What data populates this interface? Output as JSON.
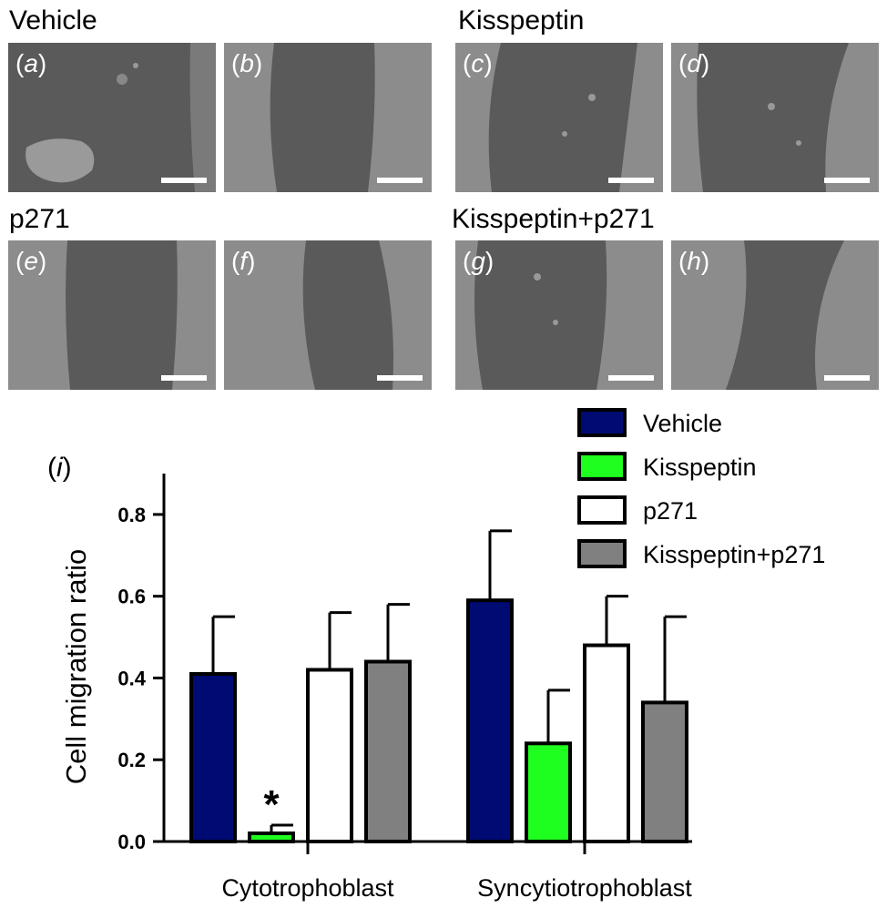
{
  "micrographs": {
    "groups": [
      {
        "title": "Vehicle",
        "panels": [
          {
            "letter": "a"
          },
          {
            "letter": "b"
          }
        ]
      },
      {
        "title": "Kisspeptin",
        "panels": [
          {
            "letter": "c"
          },
          {
            "letter": "d"
          }
        ]
      },
      {
        "title": "p271",
        "panels": [
          {
            "letter": "e"
          },
          {
            "letter": "f"
          }
        ]
      },
      {
        "title": "Kisspeptin+p271",
        "panels": [
          {
            "letter": "g"
          },
          {
            "letter": "h"
          }
        ]
      }
    ],
    "label_open": "(",
    "label_close": ")"
  },
  "chart_data": {
    "type": "bar",
    "panel_label": "i",
    "ylabel": "Cell migration ratio",
    "xlabel": "",
    "ylim": [
      0,
      0.9
    ],
    "yticks": [
      "0.0",
      "0.2",
      "0.4",
      "0.6",
      "0.8"
    ],
    "categories": [
      "Cytotrophoblast",
      "Syncytiotrophoblast"
    ],
    "series": [
      {
        "name": "Vehicle",
        "color": "#000a73",
        "values": [
          0.41,
          0.59
        ],
        "errors": [
          0.14,
          0.17
        ]
      },
      {
        "name": "Kisspeptin",
        "color": "#1fff1f",
        "values": [
          0.02,
          0.24
        ],
        "errors": [
          0.02,
          0.13
        ]
      },
      {
        "name": "p271",
        "color": "#ffffff",
        "values": [
          0.42,
          0.48
        ],
        "errors": [
          0.14,
          0.12
        ]
      },
      {
        "name": "Kisspeptin+p271",
        "color": "#808080",
        "values": [
          0.44,
          0.34
        ],
        "errors": [
          0.14,
          0.21
        ]
      }
    ],
    "annotations": [
      {
        "text": "*",
        "category": "Cytotrophoblast",
        "series": "Kisspeptin"
      }
    ],
    "legend_position": "top-right",
    "grid": false
  }
}
